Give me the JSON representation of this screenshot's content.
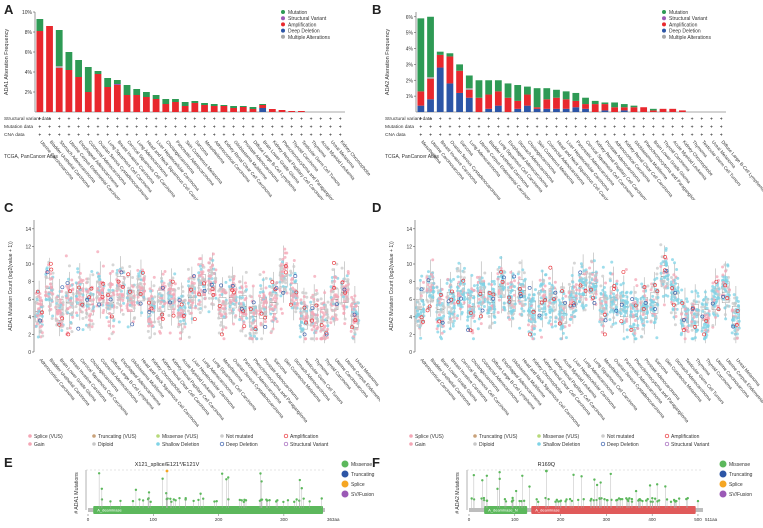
{
  "panel_labels": {
    "a": "A",
    "b": "B",
    "c": "C",
    "d": "D",
    "e": "E",
    "f": "F"
  },
  "colors": {
    "mutation": "#2e9a55",
    "structural": "#9b59b6",
    "amplification": "#e8282e",
    "deep_deletion": "#2c55a6",
    "multiple": "#a8a8a8",
    "lollipop_green": "#5cb85c",
    "domain_green": "#5cb85c",
    "domain_red": "#e05a5a",
    "splice_vus": "#f4a6b5",
    "truncating_vus": "#c9a27a",
    "missense_vus": "#b7d97a",
    "not_mutated": "#cccccc",
    "amp_ring": "#e8282e",
    "gain": "#f4a6b5",
    "diploid": "#c8c8c8",
    "shallow_del": "#7fd3e6",
    "deep_del_ring": "#2c55a6",
    "sv_ring": "#9b59b6",
    "splice": "#f5a623",
    "truncating": "#2c55a6",
    "missense": "#5cb85c",
    "sv_fusion": "#9b59b6"
  },
  "chart_data": [
    {
      "id": "A",
      "type": "bar",
      "stacked": true,
      "ylabel": "ADA1 Alteration Frequency",
      "yticks": [
        "2%",
        "4%",
        "6%",
        "8%",
        "10%"
      ],
      "ylim": [
        0,
        10
      ],
      "legend": [
        "Mutation",
        "Structural Variant",
        "Amplification",
        "Deep Deletion",
        "Multiple Alterations"
      ],
      "legend_position": "top-right",
      "track_labels": [
        "Structural variant data",
        "Mutation data",
        "CNA data"
      ],
      "study_label": "TCGA, PanCancer Atlas",
      "categories": [
        "Uterine Carcinosarcoma",
        "Bladder Urothelial Carcinoma",
        "Stomach Adenocarcinoma",
        "Uterine Corpus Endometrial Carcinoma",
        "Esophageal Adenocarcinoma",
        "Colorectal Adenocarcinoma",
        "Ovarian Serous Cystadenocarcinoma",
        "Lung Squamous Cell Carcinoma",
        "Breast Invasive Carcinoma",
        "Cervical Squamous Cell Carcinoma",
        "Lung Adenocarcinoma",
        "Head and Neck Squamous Cell Carcinoma",
        "Liver Hepatocellular Carcinoma",
        "Cholangiocarcinoma",
        "Pancreatic Adenocarcinoma",
        "Skin Cutaneous Melanoma",
        "Sarcoma",
        "Mesothelioma",
        "Adrenocortical Carcinoma",
        "Kidney Renal Clear Cell Carcinoma",
        "Glioblastoma Multiforme",
        "Prostate Adenocarcinoma",
        "Diffuse Large B-Cell Lymphoma",
        "Brain Lower Grade Glioma",
        "Kidney Renal Papillary Cell Carcinoma",
        "Pheochromocytoma and Paraganglioma",
        "Thyroid Carcinoma",
        "Testicular Germ Cell Tumors",
        "Thymoma",
        "Acute Myeloid Leukemia",
        "Uveal Melanoma",
        "Kidney Chromophobe"
      ],
      "series": [
        {
          "name": "Mutation",
          "values": [
            1.2,
            0.0,
            3.6,
            1.8,
            1.7,
            2.5,
            0.3,
            0.9,
            0.4,
            1.0,
            0.6,
            0.5,
            0.4,
            0.5,
            0.3,
            0.4,
            0.2,
            0.2,
            0.2,
            0.1,
            0.2,
            0.1,
            0.2,
            0.1,
            0.0,
            0.0,
            0.0,
            0.0,
            0.0,
            0.0,
            0.0,
            0.0
          ]
        },
        {
          "name": "Structural Variant",
          "values": [
            0,
            0,
            0,
            0,
            0,
            0,
            0,
            0,
            0.1,
            0,
            0,
            0,
            0,
            0,
            0,
            0,
            0,
            0,
            0,
            0,
            0,
            0,
            0,
            0,
            0,
            0,
            0,
            0,
            0,
            0,
            0,
            0
          ]
        },
        {
          "name": "Amplification",
          "values": [
            8.1,
            8.6,
            4.4,
            4.2,
            3.5,
            2.0,
            3.8,
            2.5,
            2.7,
            1.7,
            1.7,
            1.5,
            1.3,
            0.8,
            1.0,
            0.6,
            0.9,
            0.7,
            0.6,
            0.6,
            0.4,
            0.5,
            0.3,
            0.3,
            0.3,
            0.2,
            0.1,
            0.1,
            0.0,
            0.0,
            0.0,
            0.0
          ]
        },
        {
          "name": "Deep Deletion",
          "values": [
            0,
            0,
            0,
            0,
            0,
            0,
            0,
            0,
            0,
            0,
            0,
            0,
            0,
            0,
            0,
            0,
            0,
            0,
            0,
            0,
            0,
            0,
            0,
            0.4,
            0,
            0,
            0,
            0,
            0,
            0,
            0,
            0
          ]
        },
        {
          "name": "Multiple Alterations",
          "values": [
            0,
            0,
            0.2,
            0,
            0,
            0,
            0,
            0,
            0,
            0,
            0,
            0,
            0,
            0,
            0,
            0,
            0,
            0,
            0,
            0,
            0,
            0,
            0,
            0,
            0,
            0,
            0,
            0,
            0,
            0,
            0,
            0
          ]
        }
      ]
    },
    {
      "id": "B",
      "type": "bar",
      "stacked": true,
      "ylabel": "ADA2 Alteration Frequency",
      "yticks": [
        "1%",
        "2%",
        "3%",
        "4%",
        "5%",
        "6%"
      ],
      "ylim": [
        0,
        6.3
      ],
      "legend": [
        "Mutation",
        "Structural Variant",
        "Amplification",
        "Deep Deletion",
        "Multiple Alterations"
      ],
      "legend_position": "top-right",
      "track_labels": [
        "Structural variant data",
        "Mutation data",
        "CNA data"
      ],
      "study_label": "TCGA, PanCancer Atlas",
      "categories": [
        "Mesothelioma",
        "Uterine Carcinosarcoma",
        "Breast Invasive Carcinoma",
        "Ovarian Serous Cystadenocarcinoma",
        "Sarcoma",
        "Lung Adenocarcinoma",
        "Uterine Corpus Endometrial Carcinoma",
        "Bladder Urothelial Carcinoma",
        "Lung Squamous Cell Carcinoma",
        "Esophageal Adenocarcinoma",
        "Stomach Adenocarcinoma",
        "Cholangiocarcinoma",
        "Skin Cutaneous Melanoma",
        "Colorectal Adenocarcinoma",
        "Head and Neck Squamous Cell Carcinoma",
        "Liver Hepatocellular Carcinoma",
        "Pancreatic Adenocarcinoma",
        "Cervical Squamous Cell Carcinoma",
        "Kidney Renal Papillary Cell Carcinoma",
        "Prostate Adenocarcinoma",
        "Adrenocortical Carcinoma",
        "Kidney Renal Clear Cell Carcinoma",
        "Glioblastoma Multiforme",
        "Pheochromocytoma and Paraganglioma",
        "Brain Lower Grade Glioma",
        "Thyroid Carcinoma",
        "Acute Myeloid Leukemia",
        "Kidney Chromophobe",
        "Thymoma",
        "Testicular Germ Cell Tumors",
        "Uveal Melanoma",
        "Diffuse Large B-Cell Lymphoma"
      ],
      "series": [
        {
          "name": "Mutation",
          "values": [
            4.6,
            3.8,
            0.2,
            0.2,
            0.4,
            0.8,
            1.1,
            0.9,
            0.7,
            0.9,
            1.0,
            0.5,
            1.2,
            0.7,
            0.5,
            0.5,
            0.5,
            0.4,
            0.2,
            0.1,
            0.3,
            0.2,
            0.1,
            0.0,
            0.1,
            0.0,
            0.0,
            0.0,
            0.0,
            0.0,
            0.0,
            0.0
          ]
        },
        {
          "name": "Structural Variant",
          "values": [
            0,
            0,
            0,
            0,
            0,
            0,
            0,
            0,
            0,
            0,
            0,
            0,
            0,
            0,
            0,
            0,
            0,
            0,
            0,
            0,
            0,
            0,
            0,
            0,
            0,
            0,
            0,
            0,
            0,
            0,
            0,
            0
          ]
        },
        {
          "name": "Amplification",
          "values": [
            0.9,
            1.3,
            0.8,
            1.7,
            1.4,
            0.5,
            0.9,
            0.9,
            0.9,
            0.9,
            0.5,
            0.7,
            0.1,
            0.6,
            0.7,
            0.6,
            0.4,
            0.3,
            0.5,
            0.4,
            0.3,
            0.2,
            0.3,
            0.3,
            0.1,
            0.2,
            0.2,
            0.1,
            0.0,
            0.0,
            0.0,
            0.0
          ]
        },
        {
          "name": "Deep Deletion",
          "values": [
            0.4,
            0.8,
            2.8,
            1.8,
            1.2,
            0.9,
            0.0,
            0.2,
            0.4,
            0.0,
            0.2,
            0.4,
            0.2,
            0.2,
            0.2,
            0.2,
            0.3,
            0.2,
            0.0,
            0.1,
            0.0,
            0.1,
            0.0,
            0.0,
            0.0,
            0.0,
            0.0,
            0.0,
            0.0,
            0.0,
            0.0,
            0.0
          ]
        },
        {
          "name": "Multiple Alterations",
          "values": [
            0,
            0.1,
            0,
            0,
            0,
            0.1,
            0,
            0,
            0,
            0,
            0,
            0,
            0,
            0,
            0,
            0,
            0,
            0,
            0,
            0,
            0,
            0,
            0,
            0,
            0,
            0,
            0,
            0,
            0,
            0,
            0,
            0
          ]
        }
      ]
    },
    {
      "id": "C",
      "type": "scatter",
      "ylabel": "ADA1 Mutation Count (log2(value + 1))",
      "yticks": [
        "0",
        "2",
        "4",
        "6",
        "8",
        "10",
        "12",
        "14"
      ],
      "ylim": [
        0,
        15
      ],
      "legend": [
        "Splice (VUS)",
        "Truncating (VUS)",
        "Missense (VUS)",
        "Not mutated",
        "Amplification",
        "Gain",
        "Diploid",
        "Shallow Deletion",
        "Deep Deletion",
        "Structural Variant"
      ],
      "categories": [
        "Adrenocortical Carcinoma",
        "Bladder Urothelial Carcinoma",
        "Brain Lower Grade Glioma",
        "Breast Invasive Carcinoma",
        "Cervical Squamous Cell Carcinoma",
        "Cholangiocarcinoma",
        "Colorectal Adenocarcinoma",
        "Diffuse Large B-Cell Lymphoma",
        "Esophageal Adenocarcinoma",
        "Glioblastoma Multiforme",
        "Head and Neck Squamous Cell Carcinoma",
        "Kidney Chromophobe",
        "Kidney Renal Clear Cell Carcinoma",
        "Kidney Renal Papillary Cell Carcinoma",
        "Acute Myeloid Leukemia",
        "Liver Hepatocellular Carcinoma",
        "Lung Adenocarcinoma",
        "Lung Squamous Cell Carcinoma",
        "Mesothelioma",
        "Ovarian Serous Cystadenocarcinoma",
        "Pancreatic Adenocarcinoma",
        "Pheochromocytoma and Paraganglioma",
        "Prostate Adenocarcinoma",
        "Sarcoma",
        "Skin Cutaneous Melanoma",
        "Stomach Adenocarcinoma",
        "Testicular Germ Cell Tumors",
        "Thymoma",
        "Thyroid Carcinoma",
        "Uterine Carcinosarcoma",
        "Uterine Corpus Endometrial Carcinoma",
        "Uveal Melanoma"
      ],
      "medians": [
        4.6,
        7.2,
        4.8,
        5.6,
        6.6,
        5.4,
        6.8,
        5.6,
        7.4,
        5.8,
        7.0,
        4.6,
        5.8,
        6.0,
        4.4,
        6.2,
        7.6,
        7.8,
        5.0,
        6.2,
        5.2,
        4.0,
        5.0,
        5.6,
        8.6,
        6.6,
        3.8,
        4.2,
        3.6,
        6.0,
        6.8,
        4.0
      ]
    },
    {
      "id": "D",
      "type": "scatter",
      "ylabel": "ADA2 Mutation Count (log2(value + 1))",
      "yticks": [
        "0",
        "2",
        "4",
        "6",
        "8",
        "10",
        "12",
        "14"
      ],
      "ylim": [
        0,
        15
      ],
      "legend": [
        "Splice (VUS)",
        "Truncating (VUS)",
        "Missense (VUS)",
        "Not mutated",
        "Amplification",
        "Gain",
        "Diploid",
        "Shallow Deletion",
        "Deep Deletion",
        "Structural Variant"
      ],
      "categories": [
        "Adrenocortical Carcinoma",
        "Bladder Urothelial Carcinoma",
        "Brain Lower Grade Glioma",
        "Breast Invasive Carcinoma",
        "Cervical Squamous Cell Carcinoma",
        "Cholangiocarcinoma",
        "Colorectal Adenocarcinoma",
        "Diffuse Large B-Cell Lymphoma",
        "Esophageal Adenocarcinoma",
        "Glioblastoma Multiforme",
        "Head and Neck Squamous Cell Carcinoma",
        "Kidney Chromophobe",
        "Kidney Renal Clear Cell Carcinoma",
        "Kidney Renal Papillary Cell Carcinoma",
        "Acute Myeloid Leukemia",
        "Liver Hepatocellular Carcinoma",
        "Lung Adenocarcinoma",
        "Lung Squamous Cell Carcinoma",
        "Mesothelioma",
        "Ovarian Serous Cystadenocarcinoma",
        "Pancreatic Adenocarcinoma",
        "Pheochromocytoma and Paraganglioma",
        "Prostate Adenocarcinoma",
        "Sarcoma",
        "Skin Cutaneous Melanoma",
        "Stomach Adenocarcinoma",
        "Testicular Germ Cell Tumors",
        "Thymoma",
        "Thyroid Carcinoma",
        "Uterine Carcinosarcoma",
        "Uterine Corpus Endometrial Carcinoma",
        "Uveal Melanoma"
      ],
      "medians": [
        4.8,
        7.0,
        4.8,
        5.6,
        6.6,
        5.2,
        6.8,
        5.6,
        7.4,
        5.8,
        7.0,
        4.6,
        5.8,
        6.0,
        4.4,
        6.2,
        7.6,
        7.8,
        5.0,
        6.2,
        5.2,
        4.0,
        5.0,
        5.6,
        8.6,
        6.6,
        3.8,
        4.2,
        3.6,
        6.0,
        6.8,
        4.0
      ]
    },
    {
      "id": "E",
      "type": "lollipop",
      "ylabel": "# ADA1 Mutations",
      "annotation": "X121_splice/E121*/E121V",
      "axis_ticks": [
        0,
        100,
        200,
        300
      ],
      "axis_end_label": "363aa",
      "length": 363,
      "domains": [
        {
          "name": "A_deaminase",
          "start": 8,
          "end": 360
        }
      ],
      "legend": [
        "Missense",
        "Truncating",
        "Splice",
        "SV/Fusion"
      ]
    },
    {
      "id": "F",
      "type": "lollipop",
      "ylabel": "# ADA2 Mutations",
      "annotation": "R169Q",
      "axis_ticks": [
        0,
        100,
        200,
        300,
        400,
        500
      ],
      "axis_end_label": "511aa",
      "length": 511,
      "domains": [
        {
          "name": "A_deaminase_N",
          "start": 33,
          "end": 127
        },
        {
          "name": "A_deaminase",
          "start": 136,
          "end": 495
        }
      ],
      "legend": [
        "Missense",
        "Truncating",
        "Splice",
        "SV/Fusion"
      ]
    }
  ]
}
